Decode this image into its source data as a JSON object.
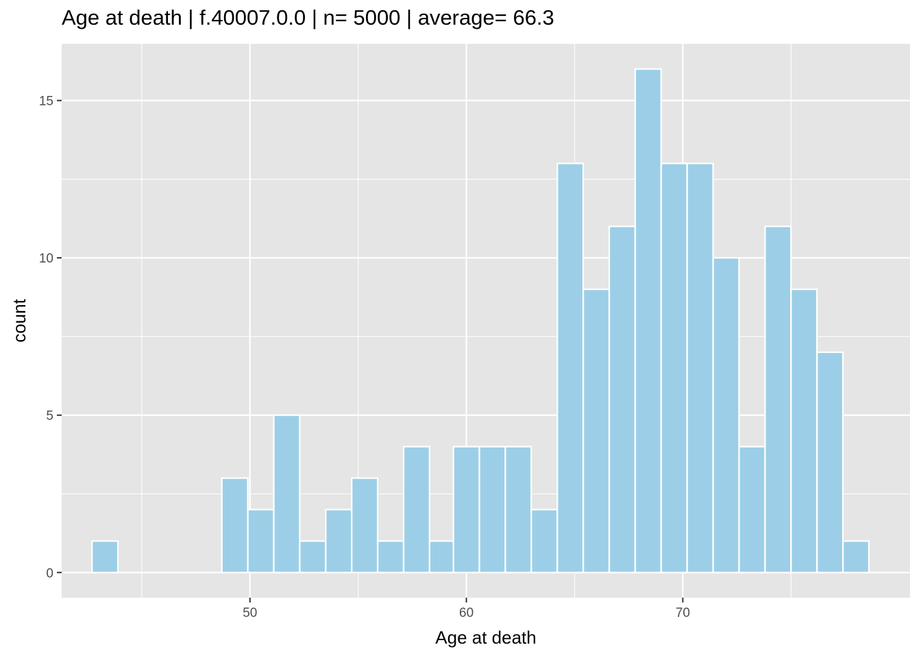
{
  "chart_data": {
    "type": "bar",
    "title": "Age at death | f.40007.0.0 | n= 5000  | average= 66.3",
    "xlabel": "Age at death",
    "ylabel": "count",
    "bin_width": 1.196,
    "bins": [
      {
        "x": 43.3,
        "count": 1
      },
      {
        "x": 44.5,
        "count": 0
      },
      {
        "x": 45.7,
        "count": 0
      },
      {
        "x": 46.9,
        "count": 0
      },
      {
        "x": 48.1,
        "count": 0
      },
      {
        "x": 49.3,
        "count": 3
      },
      {
        "x": 50.5,
        "count": 2
      },
      {
        "x": 51.7,
        "count": 5
      },
      {
        "x": 52.9,
        "count": 1
      },
      {
        "x": 54.1,
        "count": 2
      },
      {
        "x": 55.3,
        "count": 3
      },
      {
        "x": 56.5,
        "count": 1
      },
      {
        "x": 57.7,
        "count": 4
      },
      {
        "x": 58.9,
        "count": 1
      },
      {
        "x": 60.0,
        "count": 4
      },
      {
        "x": 61.2,
        "count": 4
      },
      {
        "x": 62.4,
        "count": 4
      },
      {
        "x": 63.6,
        "count": 2
      },
      {
        "x": 64.8,
        "count": 13
      },
      {
        "x": 66.0,
        "count": 9
      },
      {
        "x": 67.2,
        "count": 11
      },
      {
        "x": 68.4,
        "count": 16
      },
      {
        "x": 69.6,
        "count": 13
      },
      {
        "x": 70.8,
        "count": 13
      },
      {
        "x": 72.0,
        "count": 10
      },
      {
        "x": 73.2,
        "count": 4
      },
      {
        "x": 74.4,
        "count": 11
      },
      {
        "x": 75.6,
        "count": 9
      },
      {
        "x": 76.8,
        "count": 7
      },
      {
        "x": 78.0,
        "count": 1
      }
    ],
    "xlim": [
      41.3,
      80.5
    ],
    "ylim": [
      -0.8,
      16.8
    ],
    "x_ticks": [
      50,
      60,
      70
    ],
    "x_tick_labels": [
      "50",
      "60",
      "70"
    ],
    "y_ticks": [
      0,
      5,
      10,
      15
    ],
    "y_tick_labels": [
      "0",
      "5",
      "10",
      "15"
    ],
    "grid": true,
    "colors": {
      "panel_background": "#e5e5e5",
      "grid": "#ffffff",
      "bar_fill": "#9ccfe7",
      "bar_outline": "#ffffff"
    }
  }
}
